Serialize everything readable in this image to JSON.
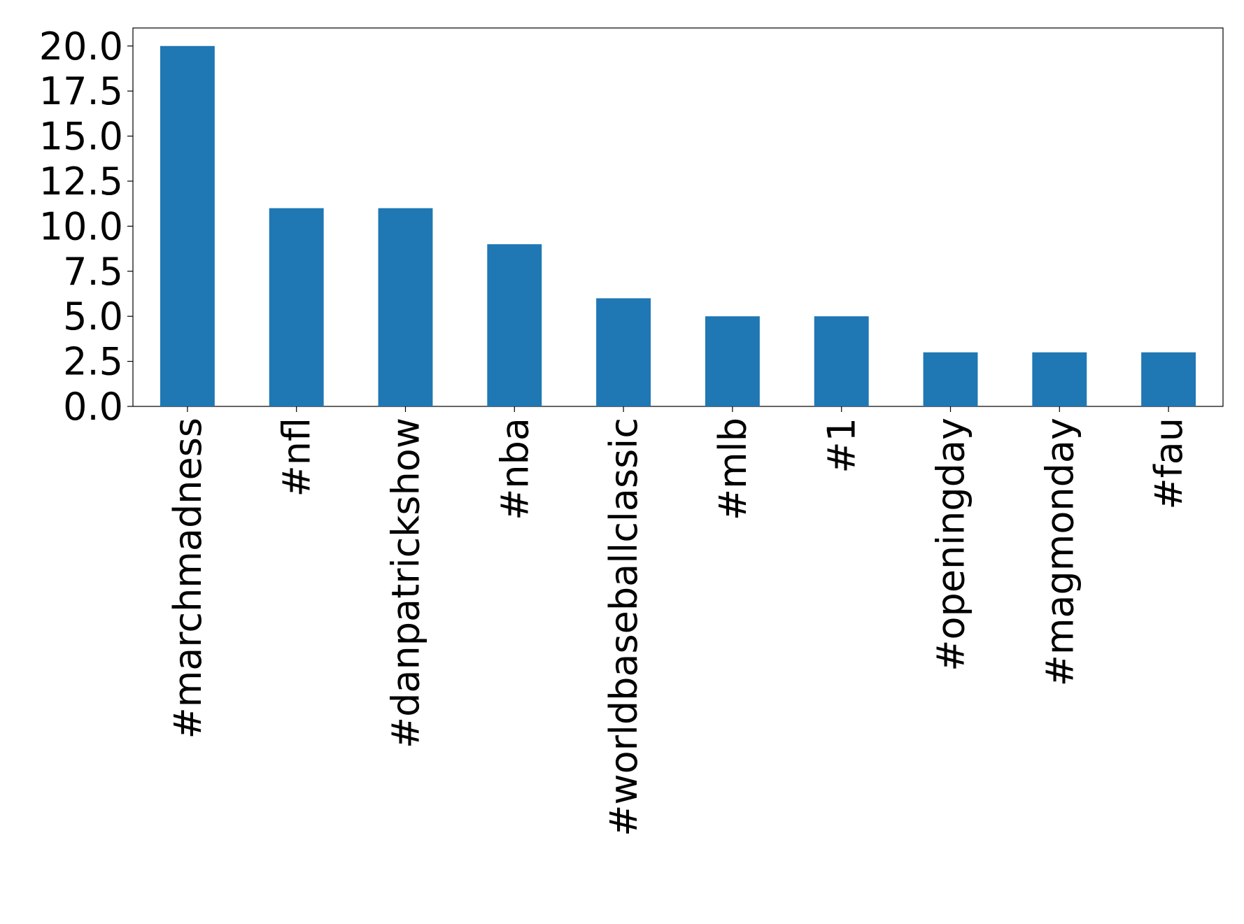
{
  "chart_data": {
    "type": "bar",
    "categories": [
      "#marchmadness",
      "#nfl",
      "#danpatrickshow",
      "#nba",
      "#worldbaseballclassic",
      "#mlb",
      "#1",
      "#openingday",
      "#magmonday",
      "#fau"
    ],
    "values": [
      20,
      11,
      11,
      9,
      6,
      5,
      5,
      3,
      3,
      3
    ],
    "color": "#1f77b4",
    "ylim": [
      0,
      21
    ],
    "yticks": [
      {
        "value": 0,
        "label": "0.0"
      },
      2.5,
      {
        "value": 5,
        "label": "5.0"
      },
      7.5,
      {
        "value": 10,
        "label": "10.0"
      },
      12.5,
      {
        "value": 15,
        "label": "15.0"
      },
      17.5,
      {
        "value": 20,
        "label": "20.0"
      }
    ],
    "grid": false
  }
}
